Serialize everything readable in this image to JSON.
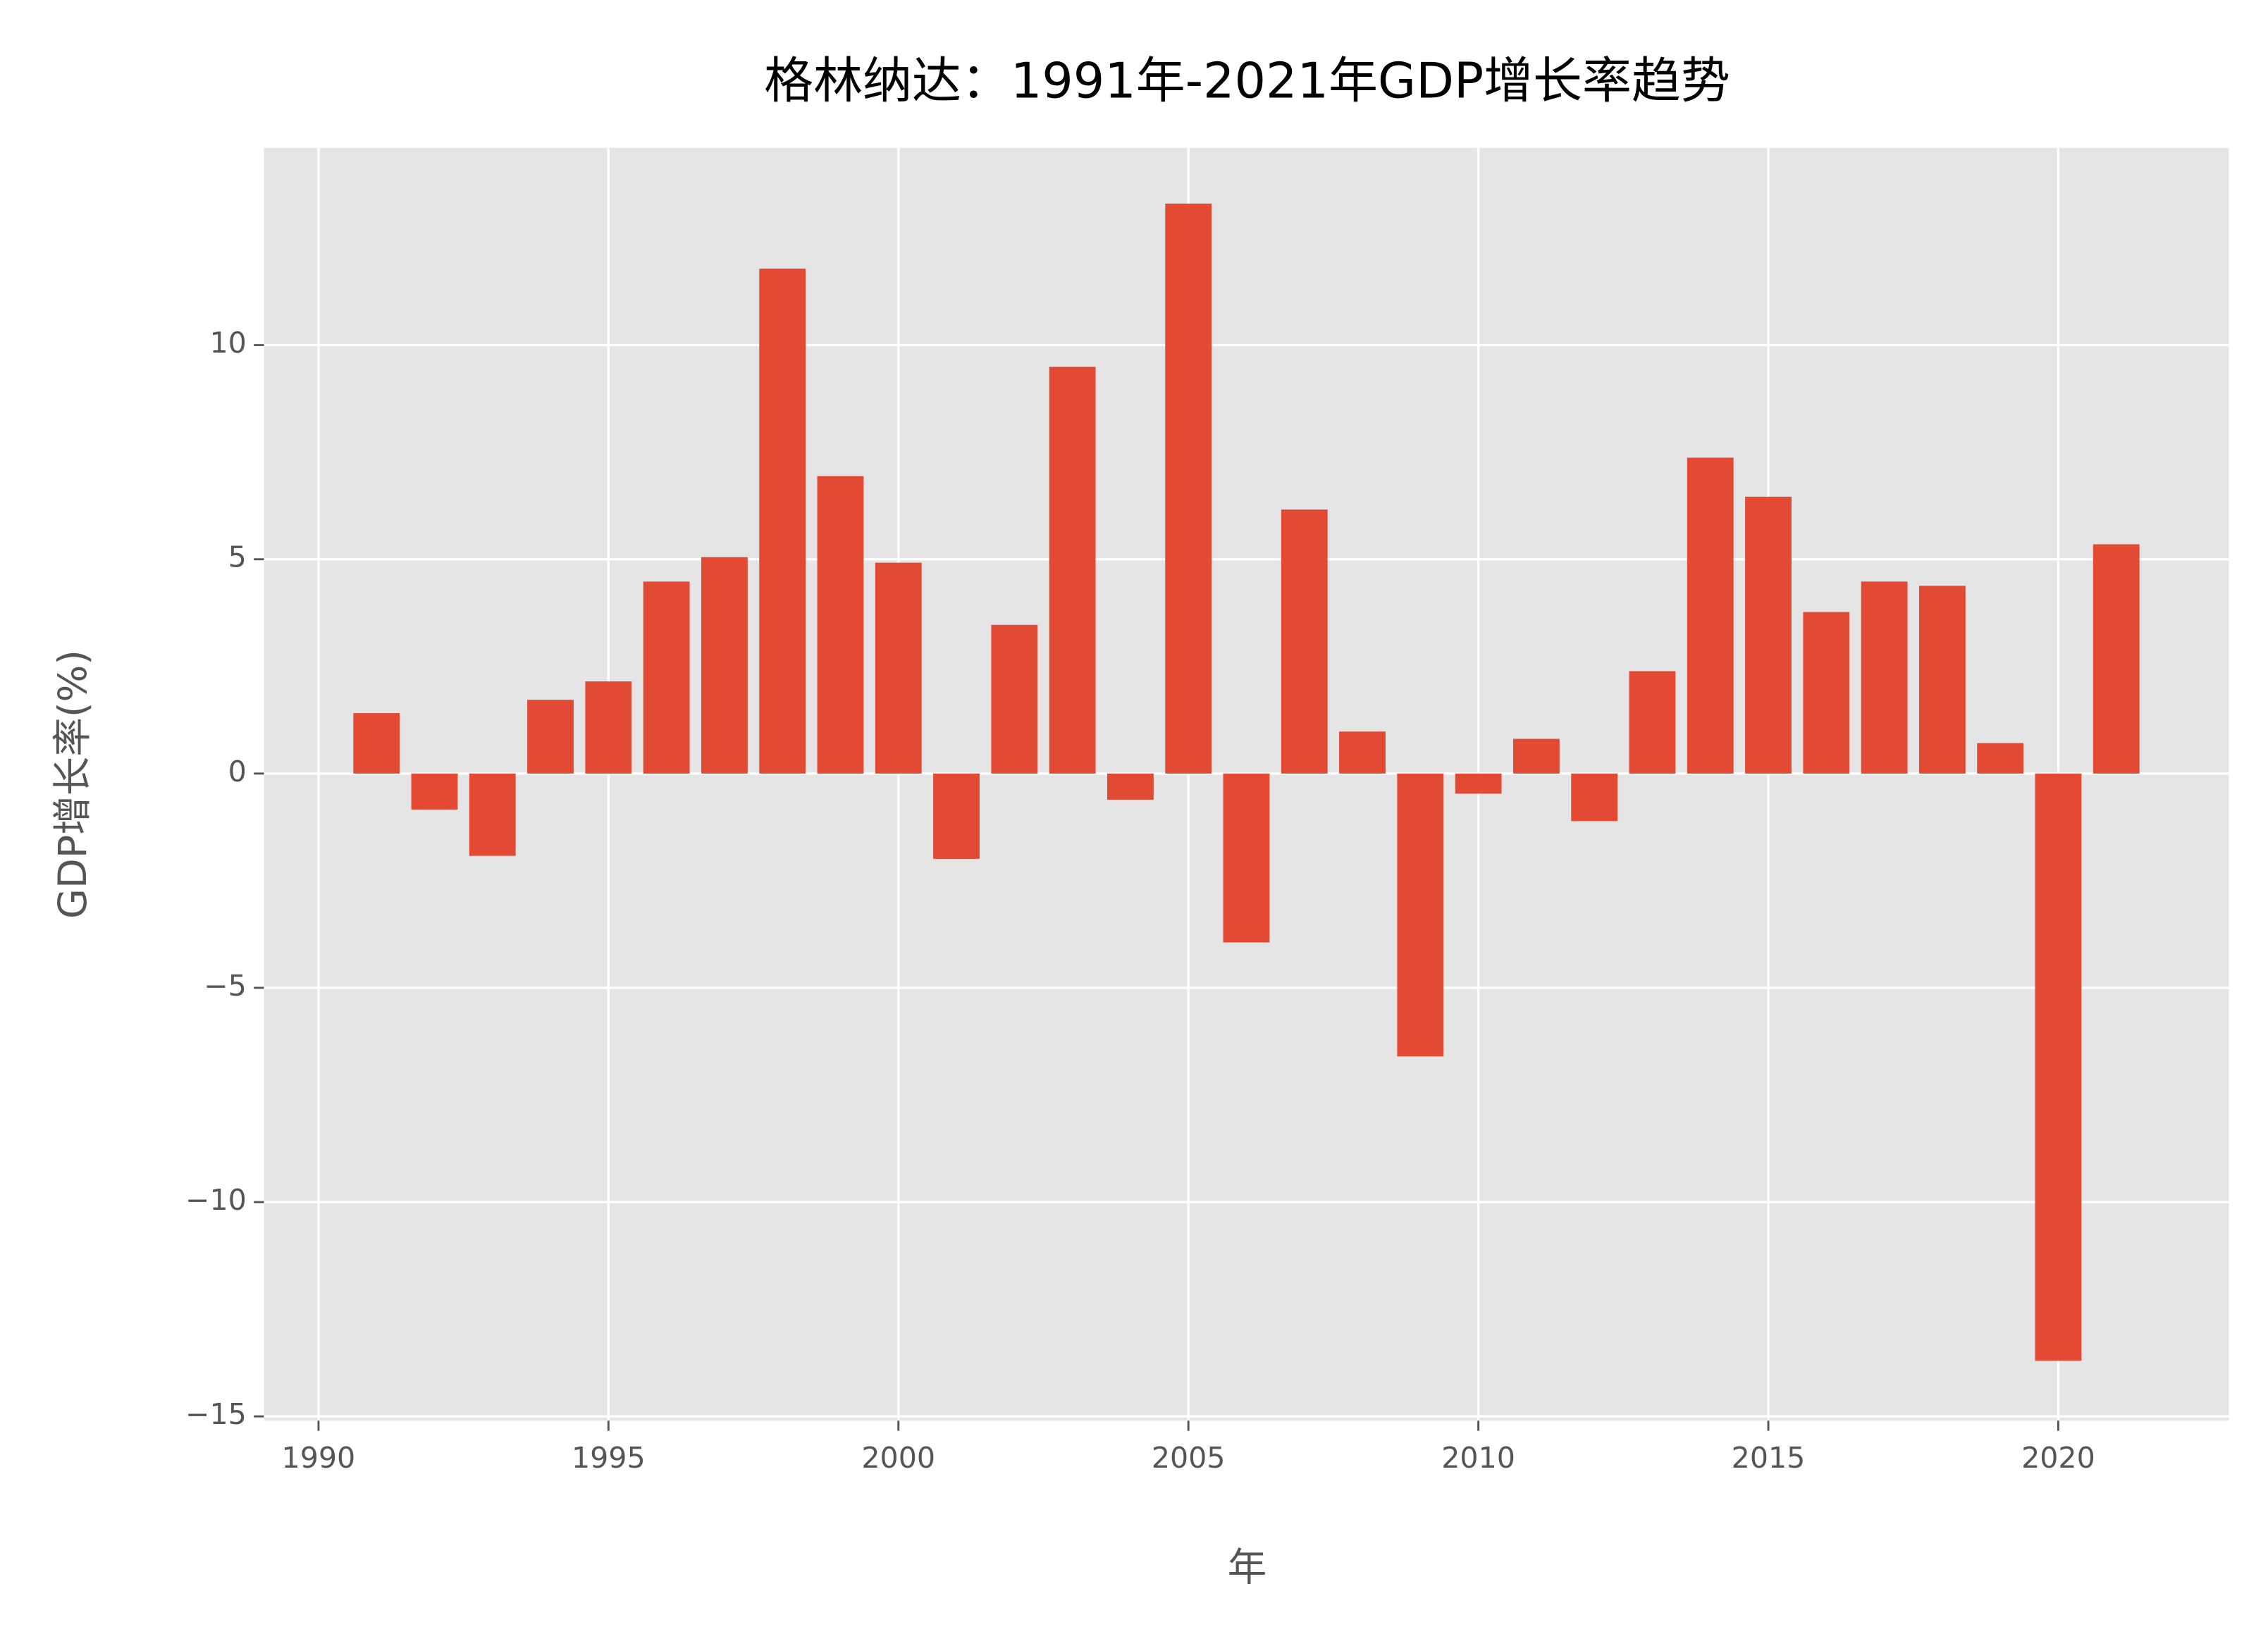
{
  "chart_data": {
    "type": "bar",
    "title": "格林纳达：1991年-2021年GDP增长率趋势",
    "x_label": "年",
    "y_label": "GDP增长率(%)",
    "x": [
      1991,
      1992,
      1993,
      1994,
      1995,
      1996,
      1997,
      1998,
      1999,
      2000,
      2001,
      2002,
      2003,
      2004,
      2005,
      2006,
      2007,
      2008,
      2009,
      2010,
      2011,
      2012,
      2013,
      2014,
      2015,
      2016,
      2017,
      2018,
      2019,
      2020,
      2021
    ],
    "values": [
      1.41,
      -0.84,
      -1.92,
      1.72,
      2.15,
      4.48,
      5.05,
      11.78,
      6.94,
      4.92,
      -1.99,
      3.47,
      9.49,
      -0.61,
      13.3,
      -3.94,
      6.16,
      0.98,
      -6.6,
      -0.47,
      0.81,
      -1.11,
      2.39,
      7.37,
      6.46,
      3.77,
      4.48,
      4.38,
      0.71,
      -13.7,
      5.35
    ],
    "color": "#e24a33",
    "xlim": [
      1989.06,
      2022.94
    ],
    "xticks": [
      1990,
      1995,
      2000,
      2005,
      2010,
      2015,
      2020
    ],
    "ylim": [
      -15.1,
      14.6
    ],
    "yticks": [
      {
        "value": -15,
        "label": "−15"
      },
      {
        "value": -10,
        "label": "−10"
      },
      {
        "value": -5,
        "label": "−5"
      },
      0,
      5,
      10
    ],
    "grid": true
  }
}
